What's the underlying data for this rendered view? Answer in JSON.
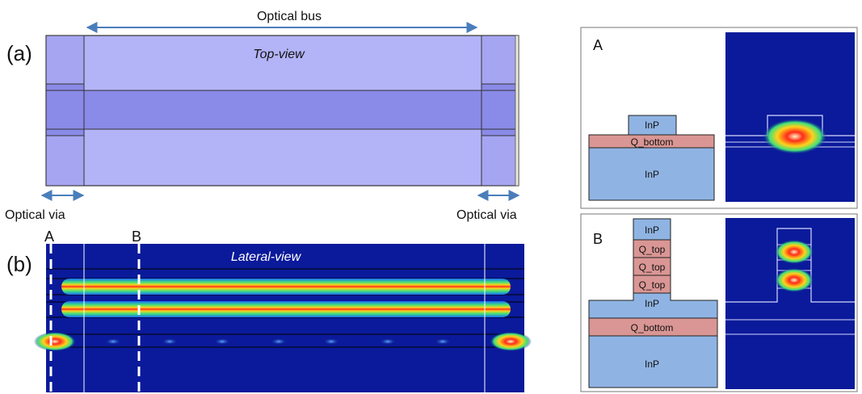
{
  "panel_a": {
    "label": "(a)",
    "view_label": "Top-view",
    "bus_label": "Optical bus",
    "via_left_label": "Optical via",
    "via_right_label": "Optical via"
  },
  "panel_b": {
    "label": "(b)",
    "view_label": "Lateral-view",
    "cut_a_label": "A",
    "cut_b_label": "B"
  },
  "section_a": {
    "label": "A",
    "layers": [
      "InP",
      "Q_bottom",
      "InP"
    ]
  },
  "section_b": {
    "label": "B",
    "layers": [
      "InP",
      "Q_top",
      "Q_top",
      "Q_top",
      "InP",
      "Q_bottom",
      "InP"
    ]
  },
  "colors": {
    "waveguide_light": "#b3b3f7",
    "waveguide_core": "#8a8ae8",
    "field_background": "#0a1a9a",
    "inp": "#8fb4e3",
    "quaternary": "#d99694",
    "arrow": "#4a7ebb"
  }
}
